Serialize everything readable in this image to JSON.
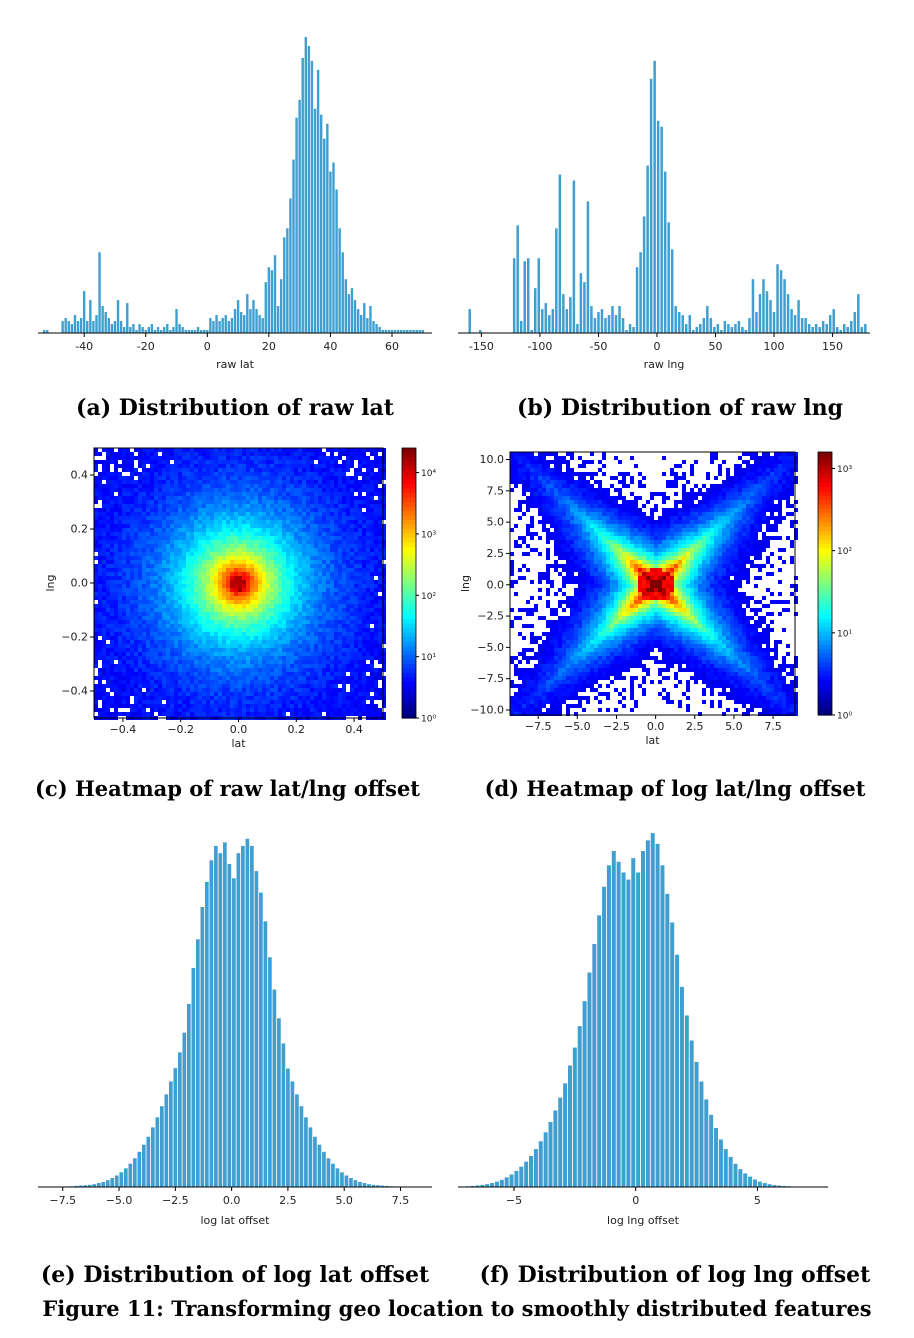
{
  "figure_caption": "Figure 11: Transforming geo location to smoothly distributed features",
  "colors": {
    "bar": "#3f9fd1",
    "bar_edge": "#ffffff",
    "axis": "#000000"
  },
  "colormap": [
    "#00007f",
    "#0000ff",
    "#007fff",
    "#00ffff",
    "#7fff7f",
    "#ffff00",
    "#ff7f00",
    "#ff0000",
    "#7f0000"
  ],
  "chart_data": [
    {
      "id": "a",
      "type": "bar",
      "caption": "(a) Distribution of raw lat",
      "xlabel": "raw lat",
      "xlim": [
        -55,
        73
      ],
      "xticks": [
        "-40",
        "-20",
        "0",
        "20",
        "40",
        "60"
      ],
      "xtick_values": [
        -40,
        -20,
        0,
        20,
        40,
        60
      ],
      "bin_width": 0.95,
      "x": [
        -53,
        -52,
        -47,
        -46,
        -45,
        -44,
        -43,
        -42,
        -41,
        -40,
        -39,
        -38,
        -37,
        -36,
        -35,
        -34,
        -33,
        -32,
        -31,
        -30,
        -29,
        -28,
        -27,
        -26,
        -25,
        -24,
        -23,
        -22,
        -21,
        -20,
        -19,
        -18,
        -17,
        -16,
        -15,
        -14,
        -13,
        -12,
        -11,
        -10,
        -9,
        -8,
        -7,
        -6,
        -5,
        -4,
        -3,
        -2,
        -1,
        0,
        1,
        2,
        3,
        4,
        5,
        6,
        7,
        8,
        9,
        10,
        11,
        12,
        13,
        14,
        15,
        16,
        17,
        18,
        19,
        20,
        21,
        22,
        23,
        24,
        25,
        26,
        27,
        28,
        29,
        30,
        31,
        32,
        33,
        34,
        35,
        36,
        37,
        38,
        39,
        40,
        41,
        42,
        43,
        44,
        45,
        46,
        47,
        48,
        49,
        50,
        51,
        52,
        53,
        54,
        55,
        56,
        57,
        58,
        59,
        60,
        61,
        62,
        63,
        64,
        65,
        66,
        67,
        68,
        69,
        70
      ],
      "y": [
        1,
        1,
        4,
        5,
        4,
        3,
        6,
        4,
        5,
        14,
        4,
        11,
        4,
        6,
        27,
        9,
        7,
        5,
        3,
        4,
        11,
        4,
        2,
        10,
        2,
        3,
        1,
        3,
        2,
        1,
        2,
        3,
        1,
        2,
        1,
        2,
        3,
        1,
        2,
        8,
        3,
        2,
        1,
        1,
        1,
        1,
        2,
        1,
        1,
        1,
        5,
        4,
        6,
        4,
        5,
        6,
        4,
        5,
        8,
        11,
        7,
        6,
        13,
        8,
        11,
        8,
        6,
        5,
        17,
        22,
        21,
        26,
        9,
        18,
        32,
        35,
        45,
        58,
        72,
        78,
        92,
        99,
        96,
        91,
        75,
        88,
        73,
        65,
        70,
        54,
        57,
        48,
        35,
        27,
        18,
        13,
        15,
        11,
        8,
        6,
        10,
        5,
        9,
        4,
        3,
        2,
        1,
        1,
        1,
        1,
        1,
        1,
        1,
        1,
        1,
        1,
        1,
        1,
        1,
        1
      ],
      "ylim": [
        0,
        102
      ]
    },
    {
      "id": "b",
      "type": "bar",
      "caption": "(b) Distribution of raw lng",
      "xlabel": "raw lng",
      "xlim": [
        -170,
        182
      ],
      "xticks": [
        "-150",
        "-100",
        "-50",
        "0",
        "50",
        "100",
        "150"
      ],
      "xtick_values": [
        -150,
        -100,
        -50,
        0,
        50,
        100,
        150
      ],
      "bin_width": 2.6,
      "x": [
        -160,
        -151,
        -122,
        -119,
        -116,
        -113,
        -110,
        -107,
        -104,
        -101,
        -98,
        -95,
        -92,
        -89,
        -86,
        -83,
        -80,
        -77,
        -74,
        -71,
        -68,
        -65,
        -62,
        -59,
        -56,
        -53,
        -50,
        -47,
        -44,
        -41,
        -38,
        -35,
        -32,
        -29,
        -26,
        -23,
        -20,
        -17,
        -14,
        -11,
        -8,
        -5,
        -2,
        1,
        4,
        7,
        10,
        13,
        16,
        19,
        22,
        25,
        28,
        31,
        34,
        37,
        40,
        43,
        46,
        49,
        52,
        55,
        58,
        61,
        64,
        67,
        70,
        73,
        76,
        79,
        82,
        85,
        88,
        91,
        94,
        97,
        100,
        103,
        106,
        109,
        112,
        115,
        118,
        121,
        124,
        127,
        130,
        133,
        136,
        139,
        142,
        145,
        148,
        151,
        154,
        157,
        160,
        163,
        166,
        169,
        172,
        175,
        178
      ],
      "y": [
        8,
        1,
        25,
        36,
        4,
        24,
        25,
        1,
        15,
        25,
        8,
        10,
        6,
        8,
        35,
        53,
        13,
        8,
        12,
        51,
        3,
        20,
        17,
        44,
        9,
        5,
        7,
        8,
        5,
        6,
        9,
        6,
        9,
        5,
        1,
        3,
        2,
        22,
        27,
        39,
        56,
        85,
        91,
        71,
        69,
        54,
        37,
        28,
        9,
        7,
        6,
        3,
        6,
        1,
        2,
        3,
        5,
        9,
        5,
        2,
        3,
        1,
        4,
        3,
        2,
        3,
        4,
        2,
        1,
        5,
        18,
        7,
        13,
        18,
        14,
        11,
        7,
        23,
        21,
        18,
        13,
        8,
        6,
        11,
        5,
        5,
        3,
        2,
        3,
        2,
        4,
        3,
        6,
        8,
        2,
        1,
        3,
        2,
        4,
        7,
        13,
        2,
        3
      ],
      "ylim": [
        0,
        100
      ]
    },
    {
      "id": "c",
      "type": "heatmap",
      "caption": "(c) Heatmap of raw lat/lng offset",
      "xlabel": "lat",
      "ylabel": "lng",
      "xlim": [
        -0.5,
        0.5
      ],
      "ylim": [
        -0.5,
        0.5
      ],
      "xticks": [
        "−0.4",
        "−0.2",
        "0.0",
        "0.2",
        "0.4"
      ],
      "xtick_values": [
        -0.4,
        -0.2,
        0.0,
        0.2,
        0.4
      ],
      "yticks": [
        "0.4",
        "0.2",
        "0.0",
        "−0.2",
        "−0.4"
      ],
      "ytick_values": [
        0.4,
        0.2,
        0.0,
        -0.2,
        -0.4
      ],
      "colorbar_ticks": [
        "10⁴",
        "10³",
        "10²",
        "10¹",
        "10⁰"
      ],
      "colorbar_log_values": [
        4,
        3,
        2,
        1,
        0
      ],
      "colorbar_log_range": [
        0,
        4.4
      ]
    },
    {
      "id": "d",
      "type": "heatmap",
      "caption": "(d) Heatmap of log lat/lng offset",
      "xlabel": "lat",
      "ylabel": "lng",
      "xlim": [
        -9.3,
        8.9
      ],
      "ylim": [
        -10.4,
        10.6
      ],
      "xticks": [
        "−7.5",
        "−5.0",
        "−2.5",
        "0.0",
        "2.5",
        "5.0",
        "7.5"
      ],
      "xtick_values": [
        -7.5,
        -5.0,
        -2.5,
        0.0,
        2.5,
        5.0,
        7.5
      ],
      "yticks": [
        "10.0",
        "7.5",
        "5.0",
        "2.5",
        "0.0",
        "−2.5",
        "−5.0",
        "−7.5",
        "−10.0"
      ],
      "ytick_values": [
        10.0,
        7.5,
        5.0,
        2.5,
        0.0,
        -2.5,
        -5.0,
        -7.5,
        -10.0
      ],
      "colorbar_ticks": [
        "10³",
        "10²",
        "10¹",
        "10⁰"
      ],
      "colorbar_log_values": [
        3,
        2,
        1,
        0
      ],
      "colorbar_log_range": [
        0,
        3.2
      ]
    },
    {
      "id": "e",
      "type": "bar",
      "caption": "(e) Distribution of log lat offset",
      "xlabel": "log lat offset",
      "xlim": [
        -8.6,
        8.9
      ],
      "xticks": [
        "−7.5",
        "−5.0",
        "−2.5",
        "0.0",
        "2.5",
        "5.0",
        "7.5"
      ],
      "xtick_values": [
        -7.5,
        -5.0,
        -2.5,
        0.0,
        2.5,
        5.0,
        7.5
      ],
      "bin_width": 0.2,
      "x": [
        -7.5,
        -7.3,
        -7.1,
        -6.9,
        -6.7,
        -6.5,
        -6.3,
        -6.1,
        -5.9,
        -5.7,
        -5.5,
        -5.3,
        -5.1,
        -4.9,
        -4.7,
        -4.5,
        -4.3,
        -4.1,
        -3.9,
        -3.7,
        -3.5,
        -3.3,
        -3.1,
        -2.9,
        -2.7,
        -2.5,
        -2.3,
        -2.1,
        -1.9,
        -1.7,
        -1.5,
        -1.3,
        -1.1,
        -0.9,
        -0.7,
        -0.5,
        -0.3,
        -0.1,
        0.1,
        0.3,
        0.5,
        0.7,
        0.9,
        1.1,
        1.3,
        1.5,
        1.7,
        1.9,
        2.1,
        2.3,
        2.5,
        2.7,
        2.9,
        3.1,
        3.3,
        3.5,
        3.7,
        3.9,
        4.1,
        4.3,
        4.5,
        4.7,
        4.9,
        5.1,
        5.3,
        5.5,
        5.7,
        5.9,
        6.1,
        6.3,
        6.5,
        6.7,
        6.9,
        7.1,
        7.3,
        7.5
      ],
      "y": [
        0.1,
        0.15,
        0.2,
        0.3,
        0.4,
        0.5,
        0.6,
        0.8,
        1.1,
        1.4,
        1.9,
        2.5,
        3.2,
        4.1,
        5.2,
        6.5,
        8,
        9.8,
        11.8,
        14,
        16.6,
        19.4,
        22.5,
        25.8,
        29.4,
        33.1,
        37.5,
        43,
        51,
        61,
        69,
        78,
        85,
        91,
        95,
        93,
        96,
        90,
        86,
        93,
        95,
        97,
        95,
        88,
        82,
        74,
        64,
        55,
        47,
        40,
        33,
        29.4,
        25.8,
        22.5,
        19.4,
        16.6,
        14,
        11.8,
        9.8,
        8,
        6.5,
        5.2,
        4.1,
        3.2,
        2.5,
        1.9,
        1.4,
        1.1,
        0.8,
        0.6,
        0.5,
        0.4,
        0.3,
        0.2,
        0.15,
        0.1
      ],
      "ylim": [
        0,
        100
      ]
    },
    {
      "id": "f",
      "type": "bar",
      "caption": "(f) Distribution of log lng offset",
      "xlabel": "log lng offset",
      "xlim": [
        -7.3,
        7.9
      ],
      "xticks": [
        "−5",
        "0",
        "5"
      ],
      "xtick_values": [
        -5,
        0,
        5
      ],
      "bin_width": 0.2,
      "x": [
        -6.9,
        -6.7,
        -6.5,
        -6.3,
        -6.1,
        -5.9,
        -5.7,
        -5.5,
        -5.3,
        -5.1,
        -4.9,
        -4.7,
        -4.5,
        -4.3,
        -4.1,
        -3.9,
        -3.7,
        -3.5,
        -3.3,
        -3.1,
        -2.9,
        -2.7,
        -2.5,
        -2.3,
        -2.1,
        -1.9,
        -1.7,
        -1.5,
        -1.3,
        -1.1,
        -0.9,
        -0.7,
        -0.5,
        -0.3,
        -0.1,
        0.1,
        0.3,
        0.5,
        0.7,
        0.9,
        1.1,
        1.3,
        1.5,
        1.7,
        1.9,
        2.1,
        2.3,
        2.5,
        2.7,
        2.9,
        3.1,
        3.3,
        3.5,
        3.7,
        3.9,
        4.1,
        4.3,
        4.5,
        4.7,
        4.9,
        5.1,
        5.3,
        5.5,
        5.7,
        5.9,
        6.1,
        6.3,
        6.5,
        6.7,
        6.9
      ],
      "y": [
        0.2,
        0.3,
        0.45,
        0.6,
        0.8,
        1.1,
        1.5,
        2,
        2.7,
        3.5,
        4.5,
        5.7,
        7.1,
        8.7,
        10.6,
        12.8,
        15.3,
        18.2,
        21.4,
        25,
        29,
        34,
        39,
        45,
        52,
        60,
        68,
        76,
        84,
        90,
        94,
        91,
        88,
        86,
        92,
        88,
        94,
        97,
        99,
        96,
        90,
        82,
        74,
        65,
        56,
        48,
        41,
        35,
        29.5,
        24.5,
        20.2,
        16.5,
        13.3,
        10.6,
        8.4,
        6.5,
        5,
        3.8,
        2.9,
        2.1,
        1.5,
        1.1,
        0.8,
        0.55,
        0.4,
        0.28,
        0.2,
        0.14,
        0.1,
        0.07
      ],
      "ylim": [
        0,
        101
      ]
    }
  ]
}
